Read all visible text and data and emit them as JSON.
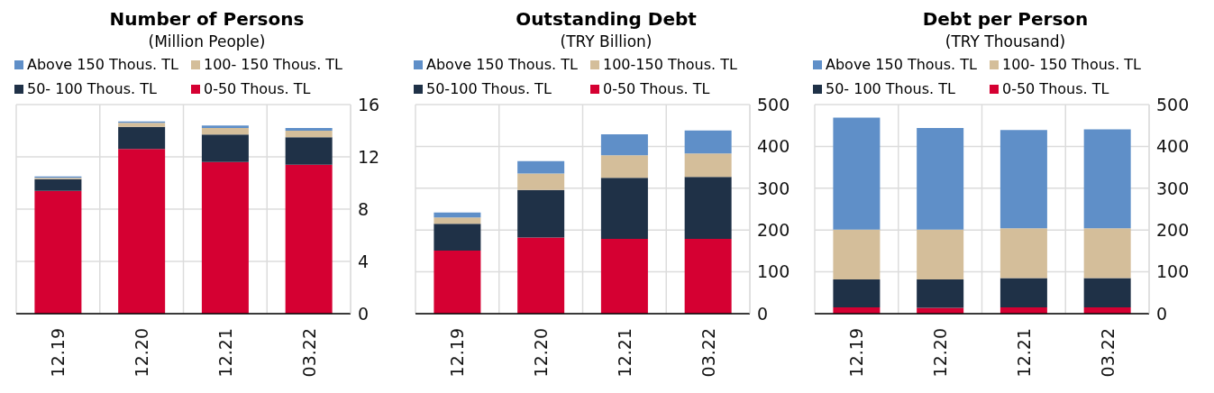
{
  "chart_data": [
    {
      "type": "bar",
      "title": "Number of Persons",
      "subtitle": "(Million People)",
      "categories": [
        "12.19",
        "12.20",
        "12.21",
        "03.22"
      ],
      "stacked": true,
      "ylim": [
        0,
        16
      ],
      "yticks": [
        0,
        4,
        8,
        12,
        16
      ],
      "grid": true,
      "legend": "top",
      "series": [
        {
          "name": "0-50 Thous. TL",
          "color": "#d50032",
          "values": [
            9.4,
            12.6,
            11.6,
            11.4
          ]
        },
        {
          "name": "50- 100 Thous. TL",
          "color": "#1f3147",
          "values": [
            0.9,
            1.7,
            2.1,
            2.1
          ]
        },
        {
          "name": "100- 150 Thous. TL",
          "color": "#d4be9a",
          "values": [
            0.1,
            0.3,
            0.5,
            0.5
          ]
        },
        {
          "name": "Above 150 Thous. TL",
          "color": "#5f8fc8",
          "values": [
            0.1,
            0.1,
            0.2,
            0.2
          ]
        }
      ]
    },
    {
      "type": "bar",
      "title": "Outstanding Debt",
      "subtitle": "(TRY Billion)",
      "categories": [
        "12.19",
        "12.20",
        "12.21",
        "03.22"
      ],
      "stacked": true,
      "ylim": [
        0,
        500
      ],
      "yticks": [
        0,
        100,
        200,
        300,
        400,
        500
      ],
      "grid": true,
      "legend": "top",
      "series": [
        {
          "name": "0-50 Thous. TL",
          "color": "#d50032",
          "values": [
            151,
            182,
            179,
            179
          ]
        },
        {
          "name": "50-100 Thous. TL",
          "color": "#1f3147",
          "values": [
            64,
            114,
            146,
            148
          ]
        },
        {
          "name": "100-150 Thous. TL",
          "color": "#d4be9a",
          "values": [
            15,
            39,
            54,
            56
          ]
        },
        {
          "name": "Above 150 Thous. TL",
          "color": "#5f8fc8",
          "values": [
            12,
            30,
            50,
            55
          ]
        }
      ]
    },
    {
      "type": "bar",
      "title": "Debt per Person",
      "subtitle": "(TRY Thousand)",
      "categories": [
        "12.19",
        "12.20",
        "12.21",
        "03.22"
      ],
      "stacked": true,
      "ylim": [
        0,
        500
      ],
      "yticks": [
        0,
        100,
        200,
        300,
        400,
        500
      ],
      "grid": true,
      "legend": "top",
      "series": [
        {
          "name": "0-50 Thous. TL",
          "color": "#d50032",
          "values": [
            15,
            14,
            15,
            15
          ]
        },
        {
          "name": "50- 100 Thous. TL",
          "color": "#1f3147",
          "values": [
            67,
            68,
            70,
            70
          ]
        },
        {
          "name": "100- 150 Thous. TL",
          "color": "#d4be9a",
          "values": [
            119,
            119,
            119,
            119
          ]
        },
        {
          "name": "Above 150 Thous. TL",
          "color": "#5f8fc8",
          "values": [
            268,
            243,
            235,
            237
          ]
        }
      ]
    }
  ]
}
